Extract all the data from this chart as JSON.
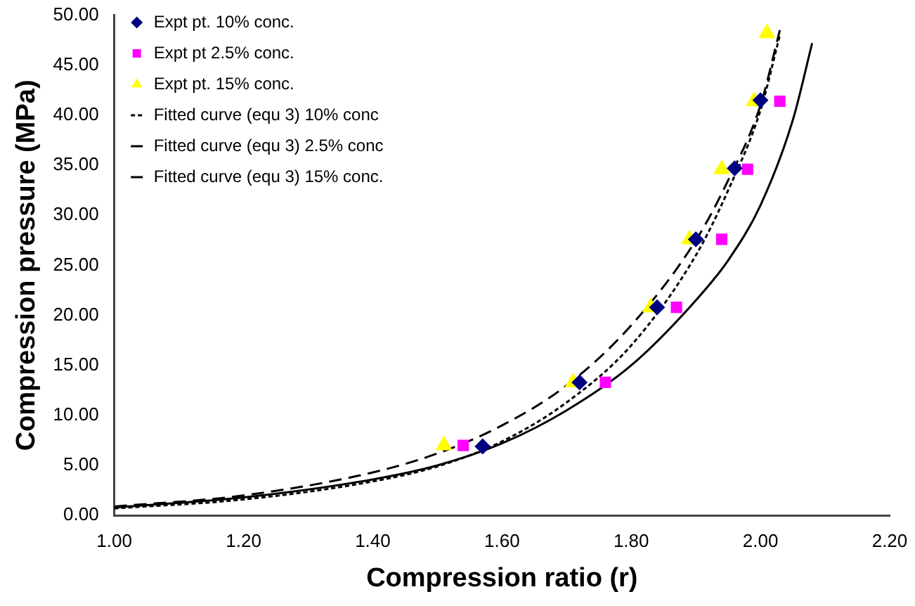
{
  "chart_data": {
    "type": "scatter",
    "xlabel": "Compression ratio (r)",
    "ylabel": "Compression pressure (MPa)",
    "xlim": [
      1,
      2.2
    ],
    "xticks": [
      {
        "value": 1,
        "label": "1.00"
      },
      {
        "value": 1.2,
        "label": "1.20"
      },
      {
        "value": 1.4,
        "label": "1.40"
      },
      {
        "value": 1.6,
        "label": "1.60"
      },
      {
        "value": 1.8,
        "label": "1.80"
      },
      {
        "value": 2,
        "label": "2.00"
      },
      {
        "value": 2.2,
        "label": "2.20"
      }
    ],
    "ylim": [
      0,
      50
    ],
    "yticks": [
      {
        "value": 0,
        "label": "0.00"
      },
      {
        "value": 5,
        "label": "5.00"
      },
      {
        "value": 10,
        "label": "10.00"
      },
      {
        "value": 15,
        "label": "15.00"
      },
      {
        "value": 20,
        "label": "20.00"
      },
      {
        "value": 25,
        "label": "25.00"
      },
      {
        "value": 30,
        "label": "30.00"
      },
      {
        "value": 35,
        "label": "35.00"
      },
      {
        "value": 40,
        "label": "40.00"
      },
      {
        "value": 45,
        "label": "45.00"
      },
      {
        "value": 50,
        "label": "50.00"
      }
    ],
    "grid": false,
    "legend": "top left",
    "series": [
      {
        "name": "Expt pt. 10% conc.",
        "marker": "diamond",
        "color": "#000080",
        "x": [
          1.57,
          1.72,
          1.84,
          1.9,
          1.96,
          2.0
        ],
        "values": [
          6.9,
          13.3,
          20.8,
          27.6,
          34.7,
          41.5
        ]
      },
      {
        "name": "Expt pt 2.5% conc.",
        "marker": "square",
        "color": "#ff00ff",
        "x": [
          1.54,
          1.76,
          1.87,
          1.94,
          1.98,
          2.03
        ],
        "values": [
          7.0,
          13.3,
          20.8,
          27.6,
          34.6,
          41.4
        ]
      },
      {
        "name": "Expt pt. 15% conc.",
        "marker": "triangle",
        "color": "#ffff00",
        "x": [
          1.51,
          1.71,
          1.83,
          1.89,
          1.94,
          1.99,
          2.01
        ],
        "values": [
          7.0,
          13.3,
          20.8,
          27.6,
          34.6,
          41.4,
          48.2
        ]
      },
      {
        "name": "Fitted curve (equ 3) 10% conc",
        "type": "line",
        "marker": "none",
        "line_style": "dotted",
        "color": "#000000",
        "x": [
          1.0,
          1.2,
          1.4,
          1.5,
          1.6,
          1.7,
          1.8,
          1.9,
          1.95,
          2.0,
          2.03
        ],
        "values": [
          0.7,
          1.6,
          3.4,
          4.9,
          7.4,
          11.3,
          17.0,
          26.0,
          32.5,
          40.5,
          48.0
        ]
      },
      {
        "name": "Fitted curve (equ 3) 2.5% conc",
        "type": "line",
        "marker": "none",
        "line_style": "solid",
        "color": "#000000",
        "x": [
          1.0,
          1.2,
          1.4,
          1.5,
          1.6,
          1.7,
          1.8,
          1.9,
          1.95,
          2.0,
          2.05,
          2.08
        ],
        "values": [
          0.8,
          1.8,
          3.6,
          5.0,
          7.2,
          10.5,
          15.0,
          21.5,
          25.5,
          31.0,
          39.5,
          47.2
        ]
      },
      {
        "name": "Fitted curve (equ 3) 15% conc.",
        "type": "line",
        "marker": "none",
        "line_style": "dashed",
        "color": "#000000",
        "x": [
          1.0,
          1.2,
          1.4,
          1.5,
          1.6,
          1.7,
          1.8,
          1.9,
          1.95,
          2.0,
          2.03
        ],
        "values": [
          0.9,
          2.0,
          4.3,
          6.2,
          9.0,
          13.0,
          19.0,
          27.5,
          33.5,
          41.0,
          48.5
        ]
      }
    ]
  }
}
